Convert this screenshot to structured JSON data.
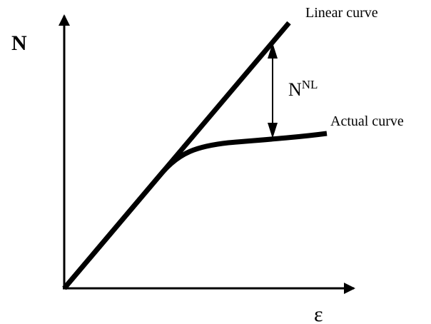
{
  "axes": {
    "y_label": "N",
    "x_label": "ε"
  },
  "curves": {
    "linear": "Linear curve",
    "actual": "Actual curve"
  },
  "annotation": {
    "base": "N",
    "superscript": "NL"
  }
}
